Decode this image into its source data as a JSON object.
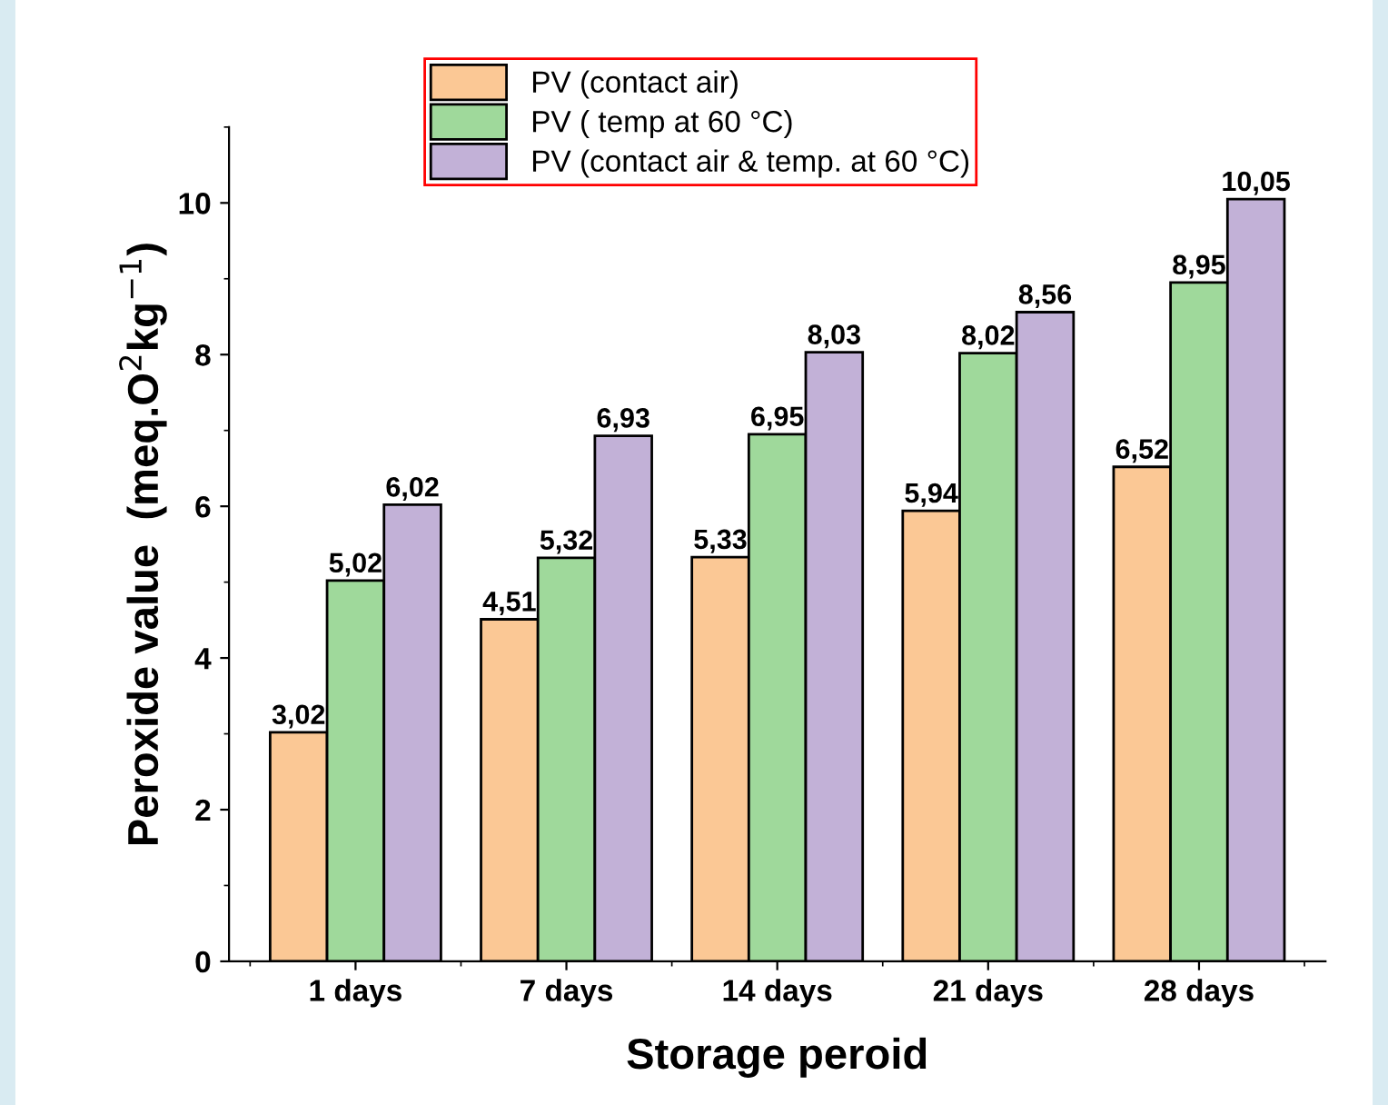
{
  "chart_data": {
    "type": "bar",
    "xlabel": "Storage peroid",
    "ylabel": "Peroxide value  (meq.O$^{2}$kg$^{−1}$)",
    "categories": [
      "1 days",
      "7 days",
      "14 days",
      "21 days",
      "28 days"
    ],
    "series": [
      {
        "name": "PV (contact air)",
        "color": "#fbc895",
        "values": [
          3.02,
          4.51,
          5.33,
          5.94,
          6.52
        ],
        "value_labels": [
          "3,02",
          "4,51",
          "5,33",
          "5,94",
          "6,52"
        ]
      },
      {
        "name": "PV ( temp at 60 °C)",
        "color": "#9fd99b",
        "values": [
          5.02,
          5.32,
          6.95,
          8.02,
          8.95
        ],
        "value_labels": [
          "5,02",
          "5,32",
          "6,95",
          "8,02",
          "8,95"
        ]
      },
      {
        "name": "PV (contact air & temp. at 60 °C)",
        "color": "#c2b1d7",
        "values": [
          6.02,
          6.93,
          8.03,
          8.56,
          10.05
        ],
        "value_labels": [
          "6,02",
          "6,93",
          "8,03",
          "8,56",
          "10,05"
        ]
      }
    ],
    "ylim": [
      0,
      11
    ],
    "yticks": [
      0,
      2,
      4,
      6,
      8,
      10
    ],
    "grid": false,
    "legend": "top"
  }
}
